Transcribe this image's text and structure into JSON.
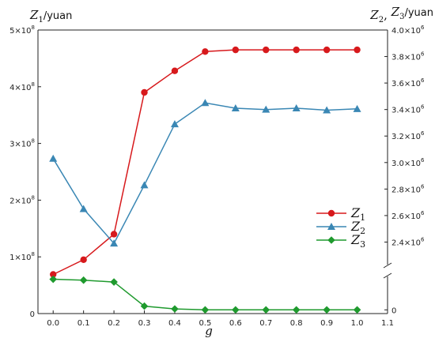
{
  "chart_data": {
    "type": "line",
    "xlabel": "g",
    "ylabel_left": {
      "symbol": "Z",
      "subscript": "1",
      "unit": "/yuan"
    },
    "ylabel_right": {
      "symbols": [
        {
          "symbol": "Z",
          "subscript": "2"
        },
        {
          "symbol": "Z",
          "subscript": "3"
        }
      ],
      "separator": ", ",
      "unit": "/yuan"
    },
    "xlim": [
      -0.05,
      1.1
    ],
    "x_ticks": [
      "0.0",
      "0.1",
      "0.2",
      "0.3",
      "0.4",
      "0.5",
      "0.6",
      "0.7",
      "0.8",
      "0.9",
      "1.0",
      "1.1"
    ],
    "y_left_ticks": [
      {
        "value": 0,
        "mantissa": "0",
        "exp": ""
      },
      {
        "value": 100000000,
        "mantissa": "1×10",
        "exp": "8"
      },
      {
        "value": 200000000,
        "mantissa": "2×10",
        "exp": "8"
      },
      {
        "value": 300000000,
        "mantissa": "3×10",
        "exp": "8"
      },
      {
        "value": 400000000,
        "mantissa": "4×10",
        "exp": "8"
      },
      {
        "value": 500000000,
        "mantissa": "5×10",
        "exp": "8"
      }
    ],
    "y_left_lim": [
      0,
      500000000
    ],
    "y_right_axis_break": true,
    "y_right_lower_ticks": [
      {
        "value": 0,
        "label": "0"
      }
    ],
    "y_right_upper_ticks": [
      {
        "value": 2400000,
        "mantissa": "2.4×10",
        "exp": "6"
      },
      {
        "value": 2600000,
        "mantissa": "2.6×10",
        "exp": "6"
      },
      {
        "value": 2800000,
        "mantissa": "2.8×10",
        "exp": "6"
      },
      {
        "value": 3000000,
        "mantissa": "3.0×10",
        "exp": "6"
      },
      {
        "value": 3200000,
        "mantissa": "3.2×10",
        "exp": "6"
      },
      {
        "value": 3400000,
        "mantissa": "3.4×10",
        "exp": "6"
      },
      {
        "value": 3600000,
        "mantissa": "3.6×10",
        "exp": "6"
      },
      {
        "value": 3800000,
        "mantissa": "3.8×10",
        "exp": "6"
      },
      {
        "value": 4000000,
        "mantissa": "4.0×10",
        "exp": "6"
      }
    ],
    "y_right_upper_lim": [
      2230000,
      4000000
    ],
    "y_right_lower_lim": [
      -20000,
      180000
    ],
    "x": [
      0.0,
      0.1,
      0.2,
      0.3,
      0.4,
      0.5,
      0.6,
      0.7,
      0.8,
      0.9,
      1.0
    ],
    "series": [
      {
        "name": "Z",
        "subscript": "1",
        "axis": "left",
        "color": "#d7191c",
        "marker": "circle",
        "values": [
          69000000,
          95000000,
          140000000,
          390000000,
          428000000,
          462000000,
          465000000,
          465000000,
          465000000,
          465000000,
          465000000
        ]
      },
      {
        "name": "Z",
        "subscript": "2",
        "axis": "right-upper",
        "color": "#3a87b4",
        "marker": "triangle",
        "values": [
          3030000,
          2650000,
          2390000,
          2830000,
          3290000,
          3450000,
          3410000,
          3400000,
          3410000,
          3395000,
          3405000
        ]
      },
      {
        "name": "Z",
        "subscript": "3",
        "axis": "right-lower",
        "color": "#1f9a2e",
        "marker": "diamond",
        "values": [
          165000,
          160000,
          150000,
          20000,
          5000,
          0,
          0,
          0,
          0,
          0,
          0
        ]
      }
    ],
    "legend_position": "right-middle",
    "grid": false
  }
}
